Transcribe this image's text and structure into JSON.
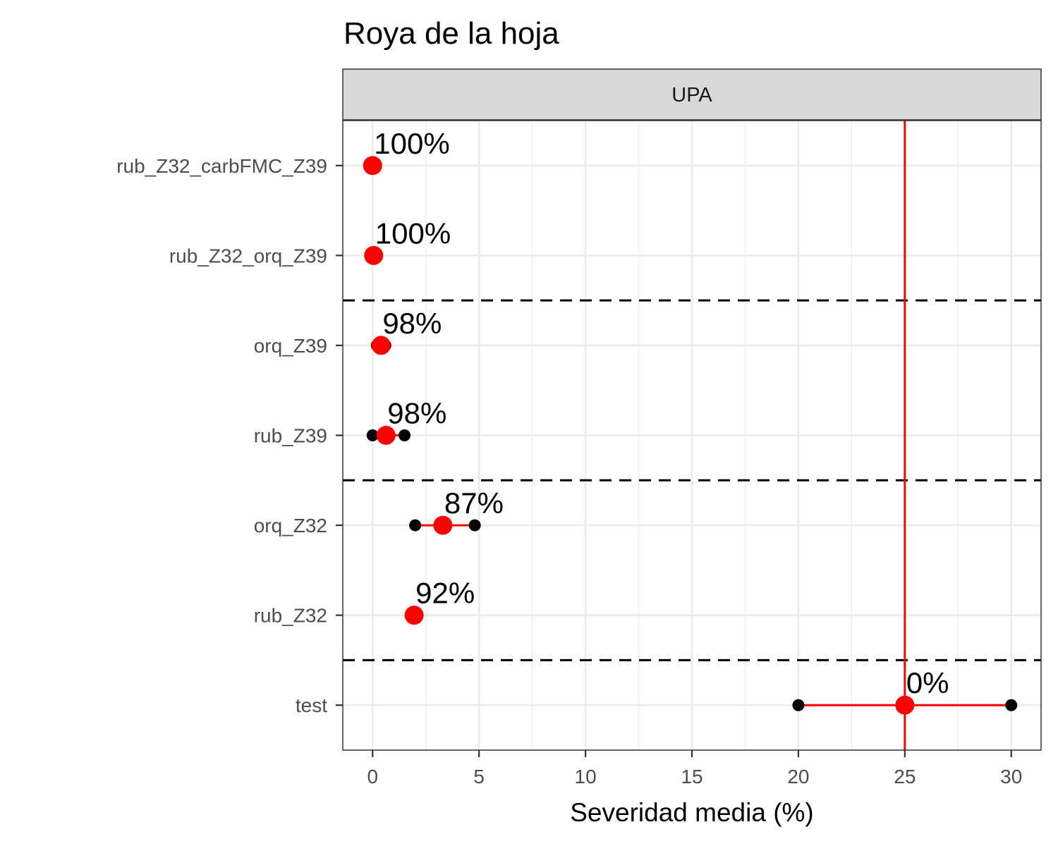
{
  "chart_data": {
    "type": "scatter",
    "title": "Roya de la hoja",
    "facet_label": "UPA",
    "xlabel": "Severidad media (%)",
    "ylabel": "",
    "xlim": [
      -1.4,
      31.4
    ],
    "x_ticks": [
      0,
      5,
      10,
      15,
      20,
      25,
      30
    ],
    "x_tick_labels": [
      "0",
      "5",
      "10",
      "15",
      "20",
      "25",
      "30"
    ],
    "reference_line_x": 25,
    "grid": true,
    "categories": [
      "rub_Z32_carbFMC_Z39",
      "rub_Z32_orq_Z39",
      "orq_Z39",
      "rub_Z39",
      "orq_Z32",
      "rub_Z32",
      "test"
    ],
    "series": [
      {
        "category": "rub_Z32_carbFMC_Z39",
        "mean": 0,
        "min": 0,
        "max": 0,
        "label": "100%"
      },
      {
        "category": "rub_Z32_orq_Z39",
        "mean": 0.05,
        "min": 0,
        "max": 0.1,
        "label": "100%"
      },
      {
        "category": "orq_Z39",
        "mean": 0.4,
        "min": 0.2,
        "max": 0.6,
        "label": "98%"
      },
      {
        "category": "rub_Z39",
        "mean": 0.63,
        "min": 0,
        "max": 1.5,
        "label": "98%"
      },
      {
        "category": "orq_Z32",
        "mean": 3.3,
        "min": 2,
        "max": 4.8,
        "label": "87%"
      },
      {
        "category": "rub_Z32",
        "mean": 1.95,
        "min": 1.9,
        "max": 2.0,
        "label": "92%"
      },
      {
        "category": "test",
        "mean": 25,
        "min": 20,
        "max": 30,
        "label": "0%"
      }
    ],
    "group_separators_between": [
      [
        1,
        2
      ],
      [
        3,
        4
      ],
      [
        5,
        6
      ]
    ],
    "colors": {
      "mean_point": "#ff0000",
      "range_line": "#ff0000",
      "range_end": "#000000",
      "reference_line": "#ff0000",
      "separator": "#000000",
      "grid": "#ebebeb",
      "strip_fill": "#d9d9d9"
    }
  }
}
